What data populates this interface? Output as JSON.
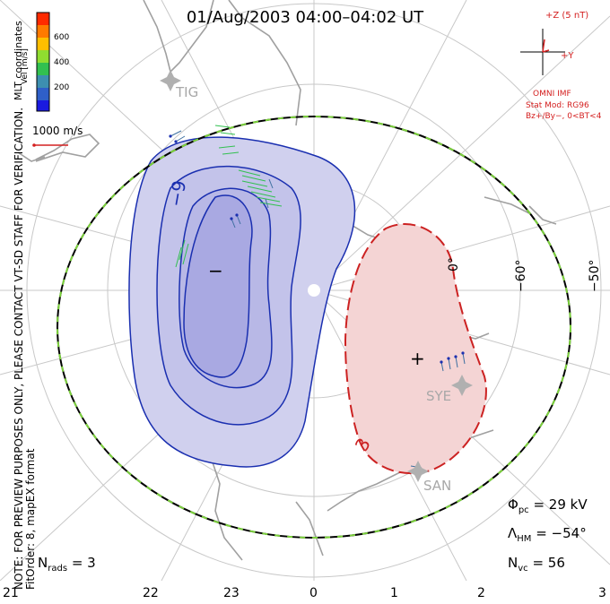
{
  "title": "01/Aug/2003 04:00–04:02 UT",
  "colorbar": {
    "label": "Vel [m/s]",
    "ticks": [
      "600",
      "400",
      "200"
    ],
    "colors": [
      "#ff2a00",
      "#ff7a00",
      "#ffbf00",
      "#90dd30",
      "#32c050",
      "#3d8fb0",
      "#2f5fc8",
      "#1a1ae0"
    ]
  },
  "coordinates": "MLT coordinates",
  "scale_vector": "1000 m/s",
  "note": "NOTE: FOR PREVIEW PURPOSES ONLY, PLEASE CONTACT VT-SD STAFF FOR VERIFICATION.",
  "fit_info": "FitOrder: 8, mapEX format",
  "imf": {
    "z_label": "+Z (5 nT)",
    "y_label": "+Y",
    "source": "OMNI IMF",
    "stat_mod": "Stat Mod: RG96",
    "condition": "Bz+/By−, 0<BT<4"
  },
  "latitude_labels": [
    "−60°",
    "−50°",
    "0°"
  ],
  "contour_labels": [
    "−9",
    "3"
  ],
  "extrema_marks": [
    "−",
    "+"
  ],
  "stations": [
    "TIG",
    "SYE",
    "SAN"
  ],
  "mlt_labels": [
    "21",
    "22",
    "23",
    "0",
    "1",
    "2",
    "3"
  ],
  "stats": {
    "phi_pc": {
      "symbol": "Φ",
      "sub": "pc",
      "eq": "= 29 kV"
    },
    "lambda_hm": {
      "symbol": "Λ",
      "sub": "HM",
      "eq": "= −54°"
    },
    "n_vc": {
      "symbol": "N",
      "sub": "vc",
      "eq": "= 56"
    },
    "n_rads": {
      "symbol": "N",
      "sub": "rads",
      "eq": "= 3"
    }
  },
  "colors": {
    "negative_cell_fill": "#d0d0ee",
    "positive_cell_fill": "#f4d4d4",
    "negative_contour": "#1a2fb0",
    "positive_contour": "#cc2222",
    "grid": "#c8c8c8",
    "coast": "#a0a0a0",
    "hm_boundary_green": "#7cd23c"
  }
}
